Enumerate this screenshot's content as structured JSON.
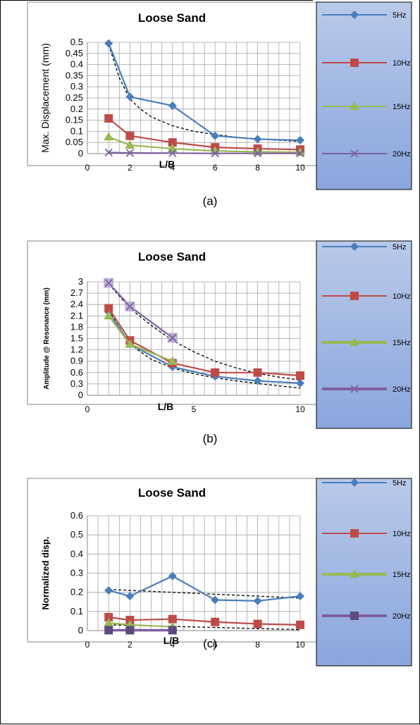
{
  "captions": [
    "(a)",
    "(b)",
    "(c)"
  ],
  "colors": {
    "5Hz": "#4a7ebb",
    "10Hz": "#be4b48",
    "15Hz": "#98b954",
    "20Hz": "#7d60a0",
    "legend_bg_top": "#b9c9ea",
    "legend_bg_bottom": "#8aa6dc",
    "trend": "#000000"
  },
  "chart_data": [
    {
      "type": "line",
      "title": "Loose Sand",
      "xlabel": "L/B",
      "ylabel": "Max. Displacement (mm)",
      "xlim": [
        0,
        10
      ],
      "ylim": [
        0,
        0.5
      ],
      "xticks": [
        "0",
        "2",
        "4",
        "6",
        "8",
        "10"
      ],
      "yticks": [
        "0",
        "0.05",
        "0.1",
        "0.15",
        "0.2",
        "0.25",
        "0.3",
        "0.35",
        "0.4",
        "0.45",
        "0.5"
      ],
      "grid": "vertical minor + horizontal",
      "legend_position": "right",
      "series": [
        {
          "name": "5Hz",
          "marker": "diamond",
          "x": [
            1,
            2,
            4,
            6,
            8,
            10
          ],
          "values": [
            0.495,
            0.255,
            0.215,
            0.08,
            0.065,
            0.06
          ]
        },
        {
          "name": "10Hz",
          "marker": "square",
          "x": [
            1,
            2,
            4,
            6,
            8,
            10
          ],
          "values": [
            0.158,
            0.08,
            0.05,
            0.028,
            0.022,
            0.018
          ]
        },
        {
          "name": "15Hz",
          "marker": "triangle",
          "x": [
            1,
            2,
            4,
            6,
            8,
            10
          ],
          "values": [
            0.075,
            0.038,
            0.022,
            0.012,
            0.008,
            0.006
          ]
        },
        {
          "name": "20Hz",
          "marker": "x",
          "x": [
            1,
            2,
            4,
            6,
            8,
            10
          ],
          "values": [
            0.005,
            0.003,
            0.002,
            0.001,
            0.001,
            0.001
          ]
        }
      ],
      "trendline": {
        "x": [
          1,
          1.5,
          2,
          2.5,
          3,
          4,
          5,
          6,
          7,
          8,
          9,
          10
        ],
        "values": [
          0.49,
          0.34,
          0.245,
          0.2,
          0.165,
          0.125,
          0.1,
          0.085,
          0.074,
          0.066,
          0.06,
          0.055
        ]
      }
    },
    {
      "type": "line",
      "title": "Loose Sand",
      "xlabel": "L/B",
      "ylabel": "Amplitude @ Resonance (mm)",
      "xlim": [
        0,
        10
      ],
      "ylim": [
        0,
        3
      ],
      "xticks": [
        "0",
        "5",
        "10"
      ],
      "yticks": [
        "0",
        "0.3",
        "0.6",
        "0.9",
        "1.2",
        "1.5",
        "1.8",
        "2.1",
        "2.4",
        "2.7",
        "3"
      ],
      "grid": "vertical minor + horizontal",
      "legend_position": "right",
      "series": [
        {
          "name": "5Hz",
          "marker": "diamond",
          "x": [
            1,
            2,
            4,
            6,
            8,
            10
          ],
          "values": [
            2.2,
            1.35,
            0.75,
            0.5,
            0.38,
            0.32
          ]
        },
        {
          "name": "10Hz",
          "marker": "square",
          "x": [
            1,
            2,
            4,
            6,
            8,
            10
          ],
          "values": [
            2.3,
            1.45,
            0.85,
            0.6,
            0.6,
            0.52
          ]
        },
        {
          "name": "15Hz",
          "marker": "triangle",
          "x": [
            1,
            2,
            4
          ],
          "values": [
            2.1,
            1.35,
            0.9
          ]
        },
        {
          "name": "20Hz",
          "marker": "x",
          "x": [
            1,
            2,
            4
          ],
          "values": [
            2.97,
            2.35,
            1.52
          ]
        }
      ],
      "trendlines": [
        {
          "x": [
            1,
            2,
            3,
            4,
            5,
            6,
            7,
            8,
            9,
            10
          ],
          "values": [
            2.95,
            2.3,
            1.85,
            1.45,
            1.15,
            0.9,
            0.72,
            0.58,
            0.48,
            0.4
          ]
        },
        {
          "x": [
            1,
            2,
            3,
            4,
            5,
            6,
            7,
            8,
            9,
            10
          ],
          "values": [
            2.25,
            1.35,
            0.95,
            0.72,
            0.57,
            0.46,
            0.38,
            0.31,
            0.25,
            0.19
          ]
        }
      ]
    },
    {
      "type": "line",
      "title": "Loose Sand",
      "xlabel": "L/B",
      "ylabel": "Normalized disp.",
      "xlim": [
        0,
        10
      ],
      "ylim": [
        0,
        0.6
      ],
      "xticks": [
        "0",
        "2",
        "4",
        "6",
        "8",
        "10"
      ],
      "yticks": [
        "0",
        "0.1",
        "0.2",
        "0.3",
        "0.4",
        "0.5",
        "0.6"
      ],
      "grid": "vertical minor + horizontal",
      "legend_position": "right",
      "series": [
        {
          "name": "5Hz",
          "marker": "diamond",
          "x": [
            1,
            2,
            4,
            6,
            8,
            10
          ],
          "values": [
            0.21,
            0.18,
            0.285,
            0.16,
            0.155,
            0.18
          ]
        },
        {
          "name": "10Hz",
          "marker": "square",
          "x": [
            1,
            2,
            4,
            6,
            8,
            10
          ],
          "values": [
            0.07,
            0.055,
            0.06,
            0.045,
            0.035,
            0.03
          ]
        },
        {
          "name": "15Hz",
          "marker": "triangle",
          "x": [
            1,
            2,
            4
          ],
          "values": [
            0.04,
            0.03,
            0.02
          ]
        },
        {
          "name": "20Hz",
          "marker": "square",
          "x": [
            1,
            2,
            4
          ],
          "values": [
            0.002,
            0.002,
            0.002
          ]
        }
      ],
      "trendlines": [
        {
          "x": [
            1,
            10
          ],
          "values": [
            0.215,
            0.17
          ]
        },
        {
          "x": [
            1,
            10
          ],
          "values": [
            0.03,
            0.005
          ]
        }
      ]
    }
  ]
}
